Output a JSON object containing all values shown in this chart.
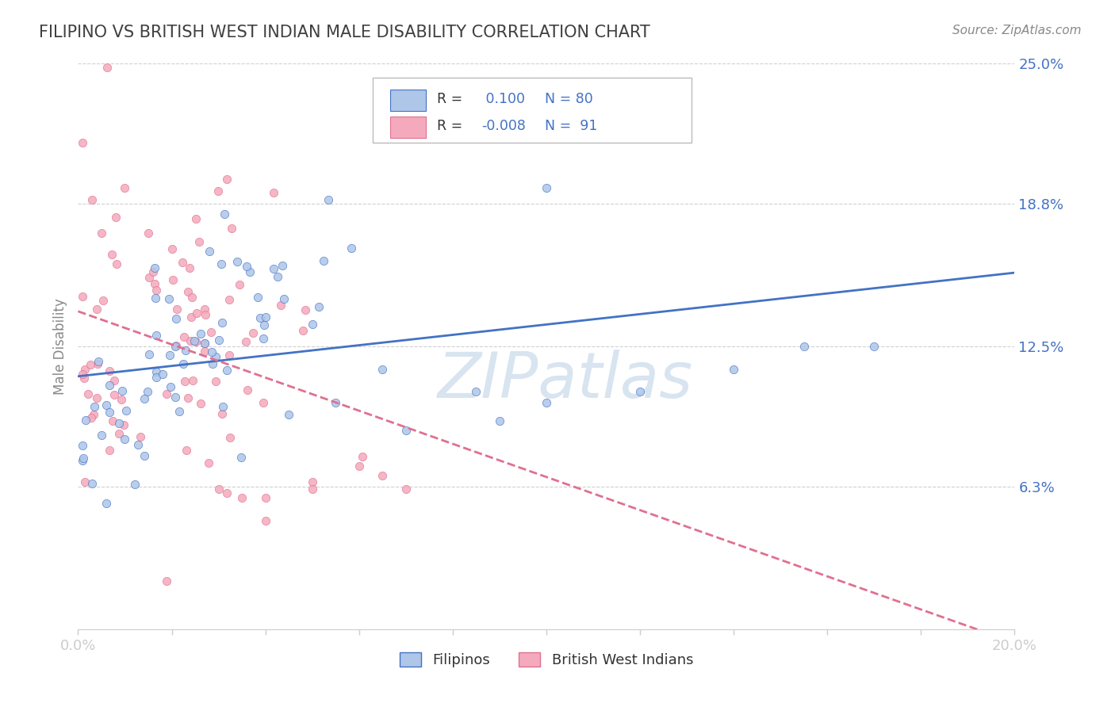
{
  "title": "FILIPINO VS BRITISH WEST INDIAN MALE DISABILITY CORRELATION CHART",
  "source_text": "Source: ZipAtlas.com",
  "ylabel": "Male Disability",
  "xlim": [
    0.0,
    0.2
  ],
  "ylim": [
    0.0,
    0.25
  ],
  "yticks": [
    0.063,
    0.125,
    0.188,
    0.25
  ],
  "ytick_labels": [
    "6.3%",
    "12.5%",
    "18.8%",
    "25.0%"
  ],
  "xtick_labels_show": [
    "0.0%",
    "20.0%"
  ],
  "filipino_color": "#aec6e8",
  "bwi_color": "#f4aabc",
  "filipino_edge_color": "#4472c4",
  "bwi_edge_color": "#e07090",
  "filipino_line_color": "#4472c4",
  "bwi_line_color": "#e07090",
  "R_filipino": 0.1,
  "N_filipino": 80,
  "R_bwi": -0.008,
  "N_bwi": 91,
  "R_color_filipino": "#4472c4",
  "R_color_bwi": "#4472c4",
  "watermark_color": "#d8e4f0",
  "background_color": "#ffffff",
  "grid_color": "#d0d0d0",
  "title_color": "#404040",
  "tick_color": "#4472c4",
  "source_color": "#888888"
}
